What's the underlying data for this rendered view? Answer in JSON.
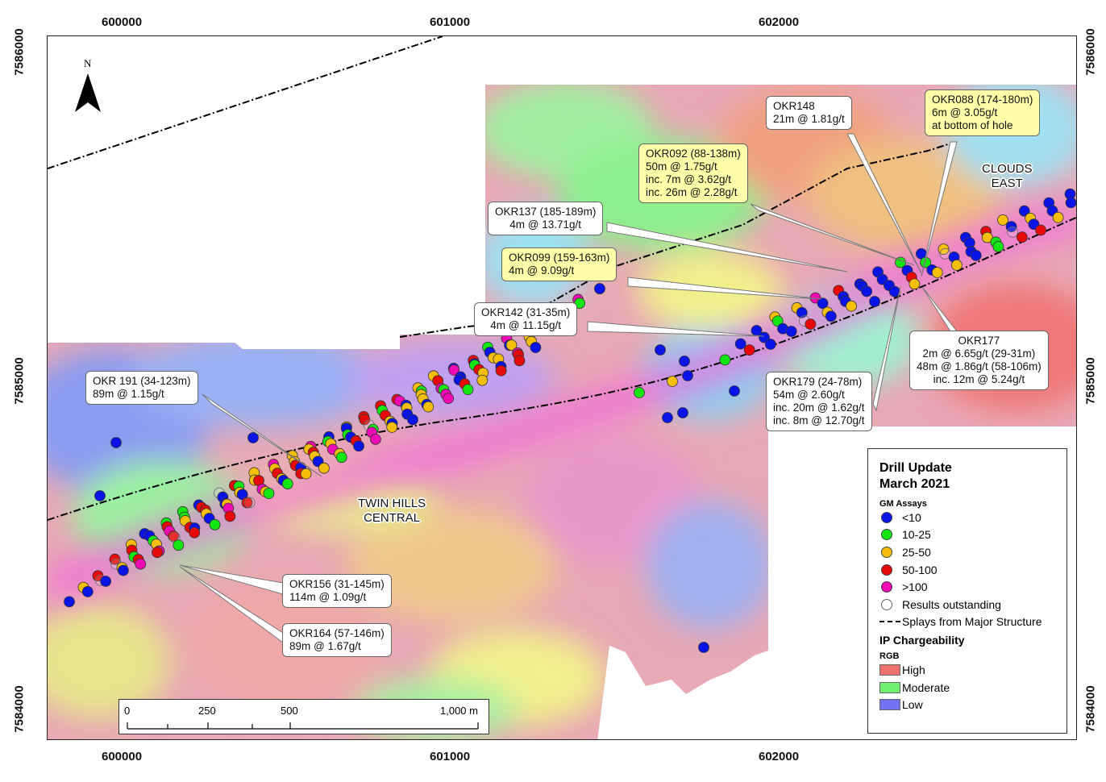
{
  "axes": {
    "x_ticks": [
      "600000",
      "601000",
      "602000"
    ],
    "y_ticks": [
      "7586000",
      "7585000",
      "7584000"
    ]
  },
  "north_arrow": {
    "label": "N"
  },
  "region_labels": [
    {
      "id": "twin-hills",
      "lines": [
        "TWIN HILLS",
        "CENTRAL"
      ]
    },
    {
      "id": "clouds-east",
      "lines": [
        "CLOUDS",
        "EAST"
      ]
    }
  ],
  "callouts": [
    {
      "id": "okr191",
      "style": "plain",
      "lines": [
        "OKR 191 (34-123m)",
        "89m @ 1.15g/t"
      ]
    },
    {
      "id": "okr156",
      "style": "plain",
      "lines": [
        "OKR156 (31-145m)",
        "114m @ 1.09g/t"
      ]
    },
    {
      "id": "okr164",
      "style": "plain",
      "lines": [
        "OKR164 (57-146m)",
        "89m @ 1.67g/t"
      ]
    },
    {
      "id": "okr142",
      "style": "plain",
      "lines": [
        "OKR142 (31-35m)",
        "4m @ 11.15g/t"
      ]
    },
    {
      "id": "okr137",
      "style": "plain",
      "lines": [
        "OKR137 (185-189m)",
        "4m @ 13.71g/t"
      ]
    },
    {
      "id": "okr099",
      "style": "highlight",
      "lines": [
        "OKR099 (159-163m)",
        "4m @ 9.09g/t"
      ]
    },
    {
      "id": "okr092",
      "style": "highlight",
      "lines": [
        "OKR092 (88-138m)",
        "50m @ 1.75g/t",
        "inc. 7m @ 3.62g/t",
        "inc. 26m @ 2.28g/t"
      ]
    },
    {
      "id": "okr148",
      "style": "plain",
      "lines": [
        "OKR148",
        "21m @ 1.81g/t"
      ]
    },
    {
      "id": "okr088",
      "style": "highlight",
      "lines": [
        "OKR088 (174-180m)",
        "6m @ 3.05g/t",
        "at bottom of hole"
      ]
    },
    {
      "id": "okr179",
      "style": "plain",
      "lines": [
        "OKR179 (24-78m)",
        "54m @ 2.60g/t",
        "inc. 20m @ 1.62g/t",
        "inc. 8m @ 12.70g/t"
      ]
    },
    {
      "id": "okr177",
      "style": "plain",
      "lines": [
        "OKR177",
        "2m @ 6.65g/t (29-31m)",
        "48m @ 1.86g/t (58-106m)",
        "inc. 12m @ 5.24g/t"
      ]
    }
  ],
  "legend": {
    "title_line1": "Drill Update",
    "title_line2": "March 2021",
    "gm_heading": "GM Assays",
    "gm_items": [
      {
        "label": "<10",
        "color": "#0a14e6"
      },
      {
        "label": "10-25",
        "color": "#14e614"
      },
      {
        "label": "25-50",
        "color": "#f5be0a"
      },
      {
        "label": "50-100",
        "color": "#e60a0a"
      },
      {
        "label": ">100",
        "color": "#f00ab4"
      },
      {
        "label": "Results outstanding",
        "color": "none"
      }
    ],
    "splay_label": "Splays from Major Structure",
    "ip_heading": "IP Chargeability",
    "rgb_heading": "RGB",
    "ip_items": [
      {
        "label": "High",
        "color": "#f07070"
      },
      {
        "label": "Moderate",
        "color": "#70f070"
      },
      {
        "label": "Low",
        "color": "#7070f0"
      }
    ]
  },
  "scale_bar": {
    "labels": [
      "0",
      "250",
      "500",
      "1,000 m"
    ]
  }
}
